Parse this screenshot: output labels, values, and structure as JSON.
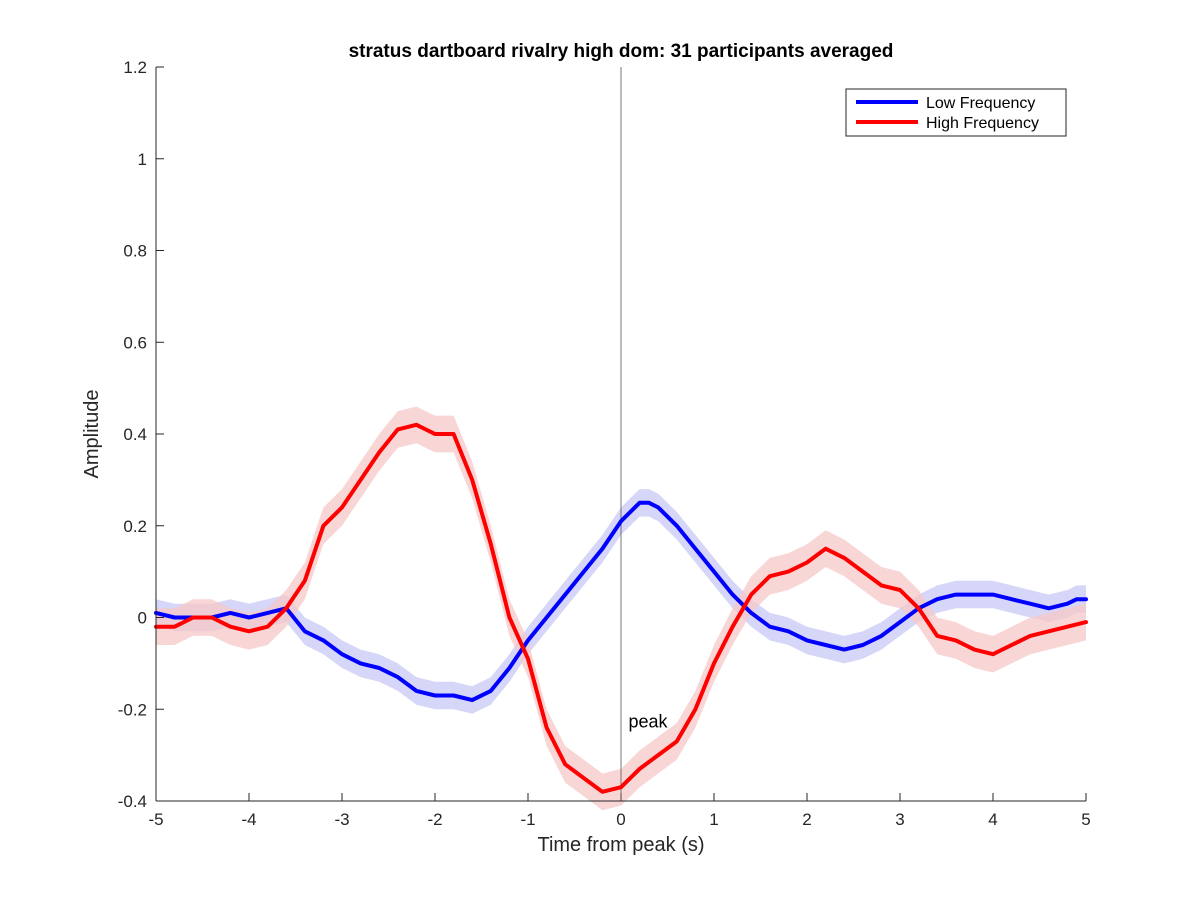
{
  "chart_data": {
    "type": "line",
    "title": "stratus dartboard rivalry high dom: 31 participants averaged",
    "xlabel": "Time from peak (s)",
    "ylabel": "Amplitude",
    "xlim": [
      -5,
      5
    ],
    "ylim": [
      -0.4,
      1.2
    ],
    "xticks": [
      -5,
      -4,
      -3,
      -2,
      -1,
      0,
      1,
      2,
      3,
      4,
      5
    ],
    "xtick_labels": [
      "-5",
      "-4",
      "-3",
      "-2",
      "-1",
      "0",
      "1",
      "2",
      "3",
      "4",
      "5"
    ],
    "yticks": [
      -0.4,
      -0.2,
      0,
      0.2,
      0.4,
      0.6,
      0.8,
      1.0,
      1.2
    ],
    "ytick_labels": [
      "-0.4",
      "-0.2",
      "0",
      "0.2",
      "0.4",
      "0.6",
      "0.8",
      "1",
      "1.2"
    ],
    "grid": false,
    "legend_position": "top-right",
    "shaded_error_band": true,
    "vertical_line_x": 0,
    "annotation": {
      "text": "peak",
      "x": 0.08,
      "y": -0.24
    },
    "series": [
      {
        "name": "Low Frequency",
        "color": "#0000ff",
        "band_color": "#c8c8f5",
        "band_halfwidth": 0.03,
        "x": [
          -5,
          -4.8,
          -4.6,
          -4.4,
          -4.2,
          -4,
          -3.8,
          -3.6,
          -3.4,
          -3.2,
          -3,
          -2.8,
          -2.6,
          -2.4,
          -2.2,
          -2,
          -1.8,
          -1.6,
          -1.4,
          -1.2,
          -1,
          -0.8,
          -0.6,
          -0.4,
          -0.2,
          0,
          0.2,
          0.3,
          0.4,
          0.6,
          0.8,
          1,
          1.2,
          1.4,
          1.6,
          1.8,
          2,
          2.2,
          2.4,
          2.6,
          2.8,
          3,
          3.2,
          3.4,
          3.6,
          3.8,
          4,
          4.2,
          4.4,
          4.6,
          4.8,
          4.9,
          5
        ],
        "y": [
          0.01,
          0.0,
          0.0,
          0.0,
          0.01,
          0.0,
          0.01,
          0.02,
          -0.03,
          -0.05,
          -0.08,
          -0.1,
          -0.11,
          -0.13,
          -0.16,
          -0.17,
          -0.17,
          -0.18,
          -0.16,
          -0.11,
          -0.05,
          0.0,
          0.05,
          0.1,
          0.15,
          0.21,
          0.25,
          0.25,
          0.24,
          0.2,
          0.15,
          0.1,
          0.05,
          0.01,
          -0.02,
          -0.03,
          -0.05,
          -0.06,
          -0.07,
          -0.06,
          -0.04,
          -0.01,
          0.02,
          0.04,
          0.05,
          0.05,
          0.05,
          0.04,
          0.03,
          0.02,
          0.03,
          0.04,
          0.04
        ]
      },
      {
        "name": "High Frequency",
        "color": "#ff0000",
        "band_color": "#f7c8c8",
        "band_halfwidth": 0.04,
        "x": [
          -5,
          -4.8,
          -4.6,
          -4.4,
          -4.2,
          -4,
          -3.8,
          -3.6,
          -3.4,
          -3.2,
          -3,
          -2.8,
          -2.6,
          -2.4,
          -2.2,
          -2,
          -1.8,
          -1.6,
          -1.4,
          -1.2,
          -1,
          -0.8,
          -0.6,
          -0.4,
          -0.2,
          0,
          0.2,
          0.4,
          0.6,
          0.8,
          1,
          1.2,
          1.4,
          1.6,
          1.8,
          2,
          2.2,
          2.4,
          2.6,
          2.8,
          3,
          3.2,
          3.4,
          3.6,
          3.8,
          4,
          4.2,
          4.4,
          4.6,
          4.8,
          5
        ],
        "y": [
          -0.02,
          -0.02,
          0.0,
          0.0,
          -0.02,
          -0.03,
          -0.02,
          0.02,
          0.08,
          0.2,
          0.24,
          0.3,
          0.36,
          0.41,
          0.42,
          0.4,
          0.4,
          0.3,
          0.16,
          0.0,
          -0.09,
          -0.24,
          -0.32,
          -0.35,
          -0.38,
          -0.37,
          -0.33,
          -0.3,
          -0.27,
          -0.2,
          -0.1,
          -0.02,
          0.05,
          0.09,
          0.1,
          0.12,
          0.15,
          0.13,
          0.1,
          0.07,
          0.06,
          0.02,
          -0.04,
          -0.05,
          -0.07,
          -0.08,
          -0.06,
          -0.04,
          -0.03,
          -0.02,
          -0.01
        ]
      }
    ]
  }
}
